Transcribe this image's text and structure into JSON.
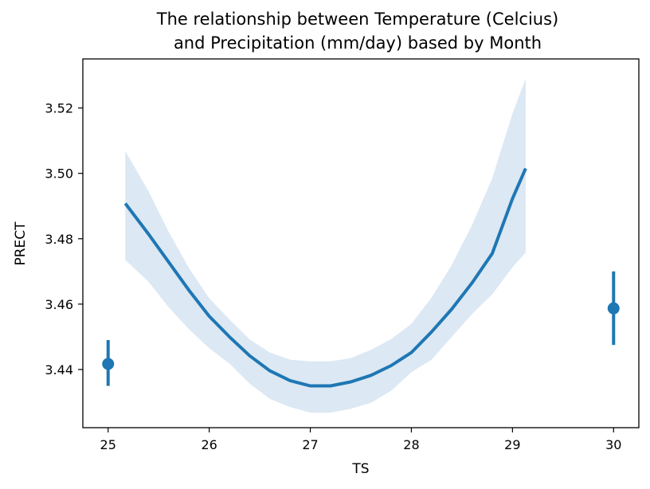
{
  "chart_data": {
    "type": "line",
    "title_line1": "The relationship between Temperature (Celcius)",
    "title_line2": "and Precipitation (mm/day) based by Month",
    "xlabel": "TS",
    "ylabel": "PRECT",
    "xlim": [
      24.75,
      30.25
    ],
    "ylim": [
      3.4222,
      3.535
    ],
    "x_ticks": [
      25,
      26,
      27,
      28,
      29,
      30
    ],
    "y_ticks": [
      3.44,
      3.46,
      3.48,
      3.5,
      3.52
    ],
    "grid": false,
    "colors": {
      "line": "#1f77b4",
      "band": "#dce8f3"
    },
    "series": [
      {
        "kind": "fit-curve",
        "x": [
          25.17,
          25.4,
          25.6,
          25.8,
          26.0,
          26.2,
          26.4,
          26.6,
          26.8,
          27.0,
          27.2,
          27.4,
          27.6,
          27.8,
          28.0,
          28.2,
          28.4,
          28.6,
          28.8,
          29.0,
          29.13
        ],
        "y": [
          3.4908,
          3.4814,
          3.4728,
          3.4642,
          3.4563,
          3.45,
          3.4442,
          3.4396,
          3.4366,
          3.435,
          3.435,
          3.4362,
          3.4382,
          3.4412,
          3.4452,
          3.4515,
          3.4585,
          3.4665,
          3.4755,
          3.4923,
          3.5015
        ],
        "ci_upper": [
          3.5068,
          3.4945,
          3.482,
          3.471,
          3.4618,
          3.4553,
          3.4492,
          3.4452,
          3.443,
          3.4425,
          3.4425,
          3.4435,
          3.446,
          3.4493,
          3.454,
          3.462,
          3.472,
          3.4842,
          3.4985,
          3.5183,
          3.529
        ],
        "ci_lower": [
          3.4735,
          3.4668,
          3.459,
          3.4523,
          3.4465,
          3.4418,
          3.4357,
          3.431,
          3.4285,
          3.4268,
          3.4268,
          3.428,
          3.4298,
          3.4335,
          3.4392,
          3.443,
          3.45,
          3.457,
          3.463,
          3.4713,
          3.4758
        ]
      },
      {
        "kind": "point-with-errorbar",
        "points": [
          {
            "x": 25,
            "y": 3.4417,
            "y_low": 3.435,
            "y_high": 3.449
          },
          {
            "x": 30,
            "y": 3.4587,
            "y_low": 3.4475,
            "y_high": 3.47
          }
        ]
      }
    ]
  }
}
